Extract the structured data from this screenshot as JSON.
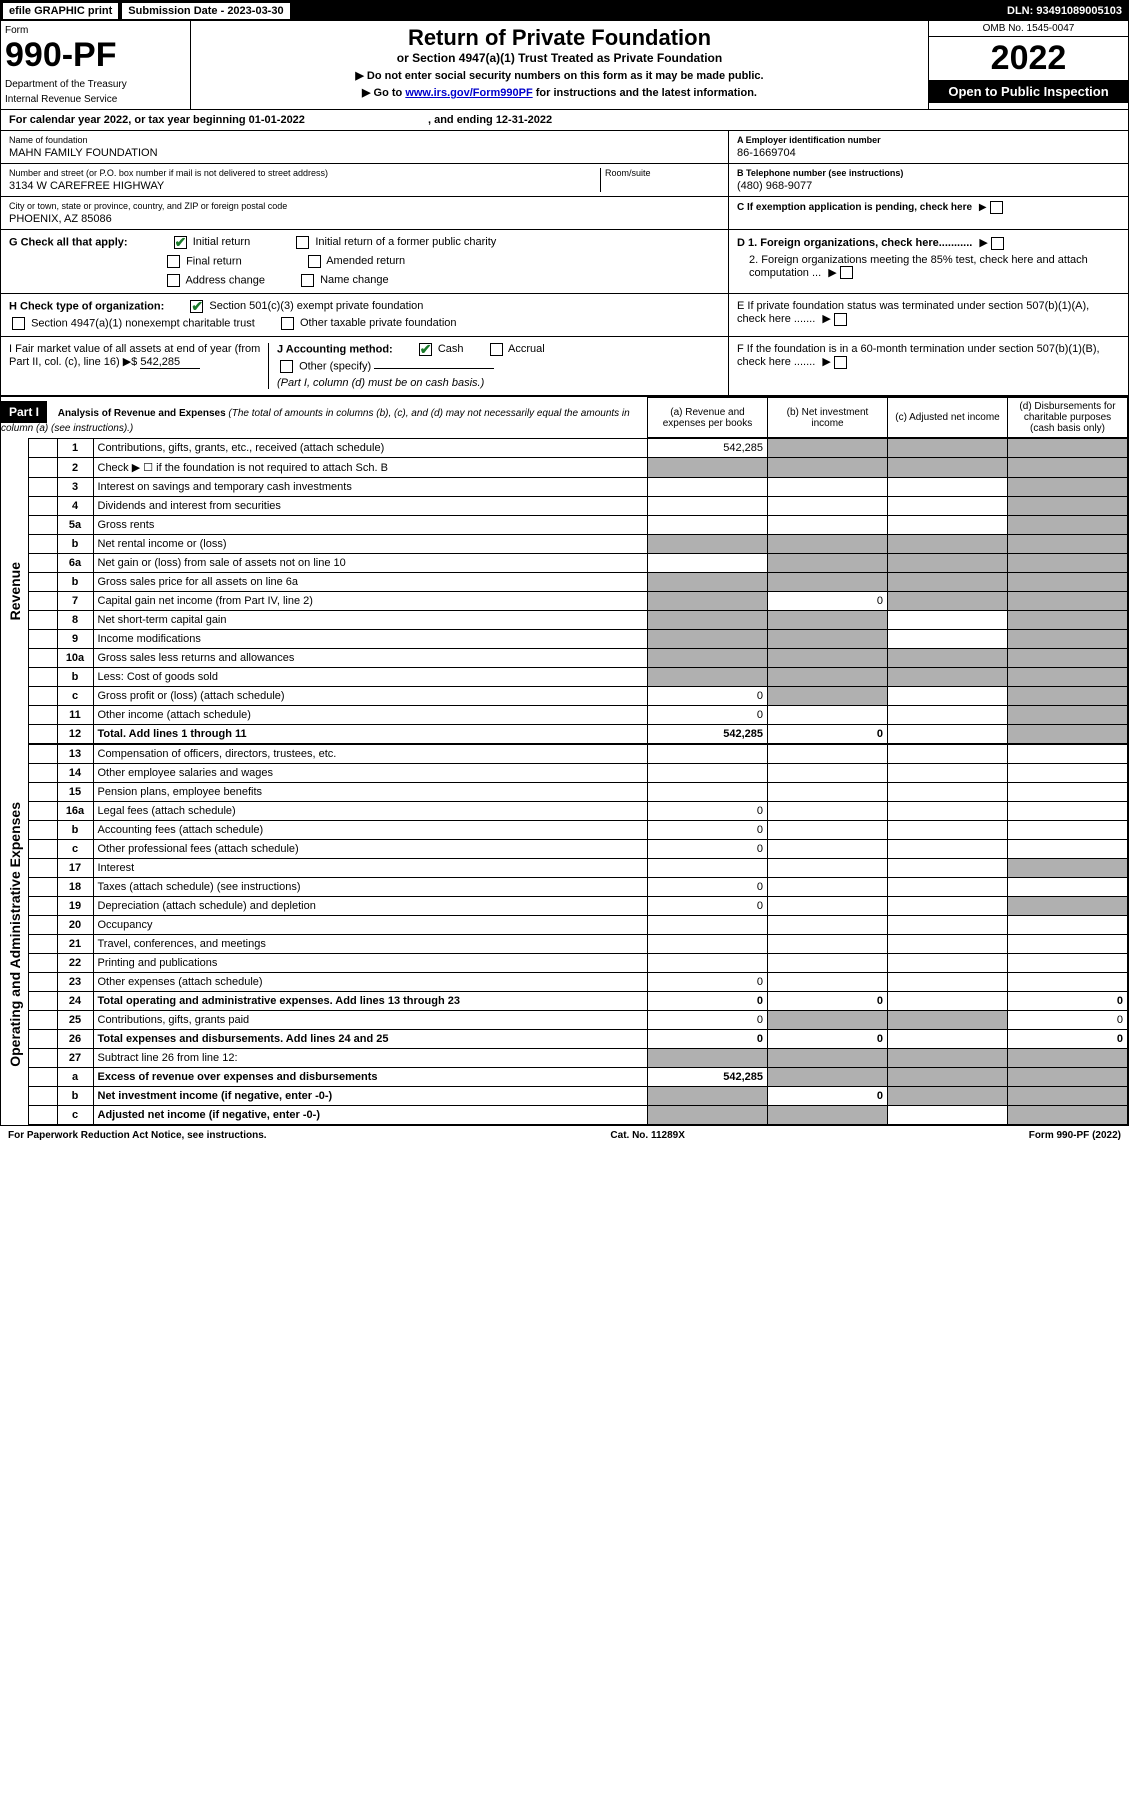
{
  "top": {
    "efile": "efile GRAPHIC print",
    "sub_date_label": "Submission Date - 2023-03-30",
    "dln": "DLN: 93491089005103"
  },
  "header": {
    "form_label": "Form",
    "form_num": "990-PF",
    "dept": "Department of the Treasury",
    "irs": "Internal Revenue Service",
    "title": "Return of Private Foundation",
    "subtitle": "or Section 4947(a)(1) Trust Treated as Private Foundation",
    "instr1": "▶ Do not enter social security numbers on this form as it may be made public.",
    "instr2_a": "▶ Go to ",
    "instr2_link": "www.irs.gov/Form990PF",
    "instr2_b": " for instructions and the latest information.",
    "omb": "OMB No. 1545-0047",
    "year": "2022",
    "inspection": "Open to Public Inspection"
  },
  "cal_year": {
    "a": "For calendar year 2022, or tax year beginning 01-01-2022",
    "b": ", and ending 12-31-2022"
  },
  "info": {
    "name_lbl": "Name of foundation",
    "name_val": "MAHN FAMILY FOUNDATION",
    "addr_lbl": "Number and street (or P.O. box number if mail is not delivered to street address)",
    "addr_val": "3134 W CAREFREE HIGHWAY",
    "room_lbl": "Room/suite",
    "city_lbl": "City or town, state or province, country, and ZIP or foreign postal code",
    "city_val": "PHOENIX, AZ  85086",
    "a_lbl": "A Employer identification number",
    "a_val": "86-1669704",
    "b_lbl": "B Telephone number (see instructions)",
    "b_val": "(480) 968-9077",
    "c_lbl": "C If exemption application is pending, check here",
    "d1_lbl": "D 1. Foreign organizations, check here...........",
    "d2_lbl": "2. Foreign organizations meeting the 85% test, check here and attach computation ...",
    "e_lbl": "E If private foundation status was terminated under section 507(b)(1)(A), check here .......",
    "f_lbl": "F If the foundation is in a 60-month termination under section 507(b)(1)(B), check here .......",
    "g_lbl": "G Check all that apply:",
    "g_initial": "Initial return",
    "g_initial_former": "Initial return of a former public charity",
    "g_final": "Final return",
    "g_amended": "Amended return",
    "g_address": "Address change",
    "g_name": "Name change",
    "h_lbl": "H Check type of organization:",
    "h_501c3": "Section 501(c)(3) exempt private foundation",
    "h_4947": "Section 4947(a)(1) nonexempt charitable trust",
    "h_other": "Other taxable private foundation",
    "i_lbl": "I Fair market value of all assets at end of year (from Part II, col. (c), line 16) ▶$",
    "i_val": "542,285",
    "j_lbl": "J Accounting method:",
    "j_cash": "Cash",
    "j_accrual": "Accrual",
    "j_other": "Other (specify)",
    "j_note": "(Part I, column (d) must be on cash basis.)"
  },
  "part1": {
    "label": "Part I",
    "title": "Analysis of Revenue and Expenses",
    "note": "(The total of amounts in columns (b), (c), and (d) may not necessarily equal the amounts in column (a) (see instructions).)",
    "col_a": "(a) Revenue and expenses per books",
    "col_b": "(b) Net investment income",
    "col_c": "(c) Adjusted net income",
    "col_d": "(d) Disbursements for charitable purposes (cash basis only)"
  },
  "side_labels": {
    "revenue": "Revenue",
    "expenses": "Operating and Administrative Expenses"
  },
  "rows": [
    {
      "n": "1",
      "d": "Contributions, gifts, grants, etc., received (attach schedule)",
      "a": "542,285",
      "b": "shaded",
      "c": "shaded",
      "dd": "shaded"
    },
    {
      "n": "2",
      "d": "Check ▶ ☐ if the foundation is not required to attach Sch. B",
      "a": "shaded",
      "b": "shaded",
      "c": "shaded",
      "dd": "shaded"
    },
    {
      "n": "3",
      "d": "Interest on savings and temporary cash investments",
      "a": "",
      "b": "",
      "c": "",
      "dd": "shaded"
    },
    {
      "n": "4",
      "d": "Dividends and interest from securities",
      "a": "",
      "b": "",
      "c": "",
      "dd": "shaded"
    },
    {
      "n": "5a",
      "d": "Gross rents",
      "a": "",
      "b": "",
      "c": "",
      "dd": "shaded"
    },
    {
      "n": "b",
      "d": "Net rental income or (loss)",
      "a": "shaded",
      "b": "shaded",
      "c": "shaded",
      "dd": "shaded"
    },
    {
      "n": "6a",
      "d": "Net gain or (loss) from sale of assets not on line 10",
      "a": "",
      "b": "shaded",
      "c": "shaded",
      "dd": "shaded"
    },
    {
      "n": "b",
      "d": "Gross sales price for all assets on line 6a",
      "a": "shaded",
      "b": "shaded",
      "c": "shaded",
      "dd": "shaded"
    },
    {
      "n": "7",
      "d": "Capital gain net income (from Part IV, line 2)",
      "a": "shaded",
      "b": "0",
      "c": "shaded",
      "dd": "shaded"
    },
    {
      "n": "8",
      "d": "Net short-term capital gain",
      "a": "shaded",
      "b": "shaded",
      "c": "",
      "dd": "shaded"
    },
    {
      "n": "9",
      "d": "Income modifications",
      "a": "shaded",
      "b": "shaded",
      "c": "",
      "dd": "shaded"
    },
    {
      "n": "10a",
      "d": "Gross sales less returns and allowances",
      "a": "shaded",
      "b": "shaded",
      "c": "shaded",
      "dd": "shaded"
    },
    {
      "n": "b",
      "d": "Less: Cost of goods sold",
      "a": "shaded",
      "b": "shaded",
      "c": "shaded",
      "dd": "shaded"
    },
    {
      "n": "c",
      "d": "Gross profit or (loss) (attach schedule)",
      "a": "0",
      "b": "shaded",
      "c": "",
      "dd": "shaded"
    },
    {
      "n": "11",
      "d": "Other income (attach schedule)",
      "a": "0",
      "b": "",
      "c": "",
      "dd": "shaded"
    },
    {
      "n": "12",
      "d": "Total. Add lines 1 through 11",
      "a": "542,285",
      "b": "0",
      "c": "",
      "dd": "shaded",
      "bold": true
    }
  ],
  "exp_rows": [
    {
      "n": "13",
      "d": "Compensation of officers, directors, trustees, etc.",
      "a": "",
      "b": "",
      "c": "",
      "dd": ""
    },
    {
      "n": "14",
      "d": "Other employee salaries and wages",
      "a": "",
      "b": "",
      "c": "",
      "dd": ""
    },
    {
      "n": "15",
      "d": "Pension plans, employee benefits",
      "a": "",
      "b": "",
      "c": "",
      "dd": ""
    },
    {
      "n": "16a",
      "d": "Legal fees (attach schedule)",
      "a": "0",
      "b": "",
      "c": "",
      "dd": ""
    },
    {
      "n": "b",
      "d": "Accounting fees (attach schedule)",
      "a": "0",
      "b": "",
      "c": "",
      "dd": ""
    },
    {
      "n": "c",
      "d": "Other professional fees (attach schedule)",
      "a": "0",
      "b": "",
      "c": "",
      "dd": ""
    },
    {
      "n": "17",
      "d": "Interest",
      "a": "",
      "b": "",
      "c": "",
      "dd": "shaded"
    },
    {
      "n": "18",
      "d": "Taxes (attach schedule) (see instructions)",
      "a": "0",
      "b": "",
      "c": "",
      "dd": ""
    },
    {
      "n": "19",
      "d": "Depreciation (attach schedule) and depletion",
      "a": "0",
      "b": "",
      "c": "",
      "dd": "shaded"
    },
    {
      "n": "20",
      "d": "Occupancy",
      "a": "",
      "b": "",
      "c": "",
      "dd": ""
    },
    {
      "n": "21",
      "d": "Travel, conferences, and meetings",
      "a": "",
      "b": "",
      "c": "",
      "dd": ""
    },
    {
      "n": "22",
      "d": "Printing and publications",
      "a": "",
      "b": "",
      "c": "",
      "dd": ""
    },
    {
      "n": "23",
      "d": "Other expenses (attach schedule)",
      "a": "0",
      "b": "",
      "c": "",
      "dd": ""
    },
    {
      "n": "24",
      "d": "Total operating and administrative expenses. Add lines 13 through 23",
      "a": "0",
      "b": "0",
      "c": "",
      "dd": "0",
      "bold": true
    },
    {
      "n": "25",
      "d": "Contributions, gifts, grants paid",
      "a": "0",
      "b": "shaded",
      "c": "shaded",
      "dd": "0"
    },
    {
      "n": "26",
      "d": "Total expenses and disbursements. Add lines 24 and 25",
      "a": "0",
      "b": "0",
      "c": "",
      "dd": "0",
      "bold": true
    },
    {
      "n": "27",
      "d": "Subtract line 26 from line 12:",
      "a": "shaded",
      "b": "shaded",
      "c": "shaded",
      "dd": "shaded"
    },
    {
      "n": "a",
      "d": "Excess of revenue over expenses and disbursements",
      "a": "542,285",
      "b": "shaded",
      "c": "shaded",
      "dd": "shaded",
      "bold": true
    },
    {
      "n": "b",
      "d": "Net investment income (if negative, enter -0-)",
      "a": "shaded",
      "b": "0",
      "c": "shaded",
      "dd": "shaded",
      "bold": true
    },
    {
      "n": "c",
      "d": "Adjusted net income (if negative, enter -0-)",
      "a": "shaded",
      "b": "shaded",
      "c": "",
      "dd": "shaded",
      "bold": true
    }
  ],
  "footer": {
    "left": "For Paperwork Reduction Act Notice, see instructions.",
    "center": "Cat. No. 11289X",
    "right": "Form 990-PF (2022)"
  }
}
